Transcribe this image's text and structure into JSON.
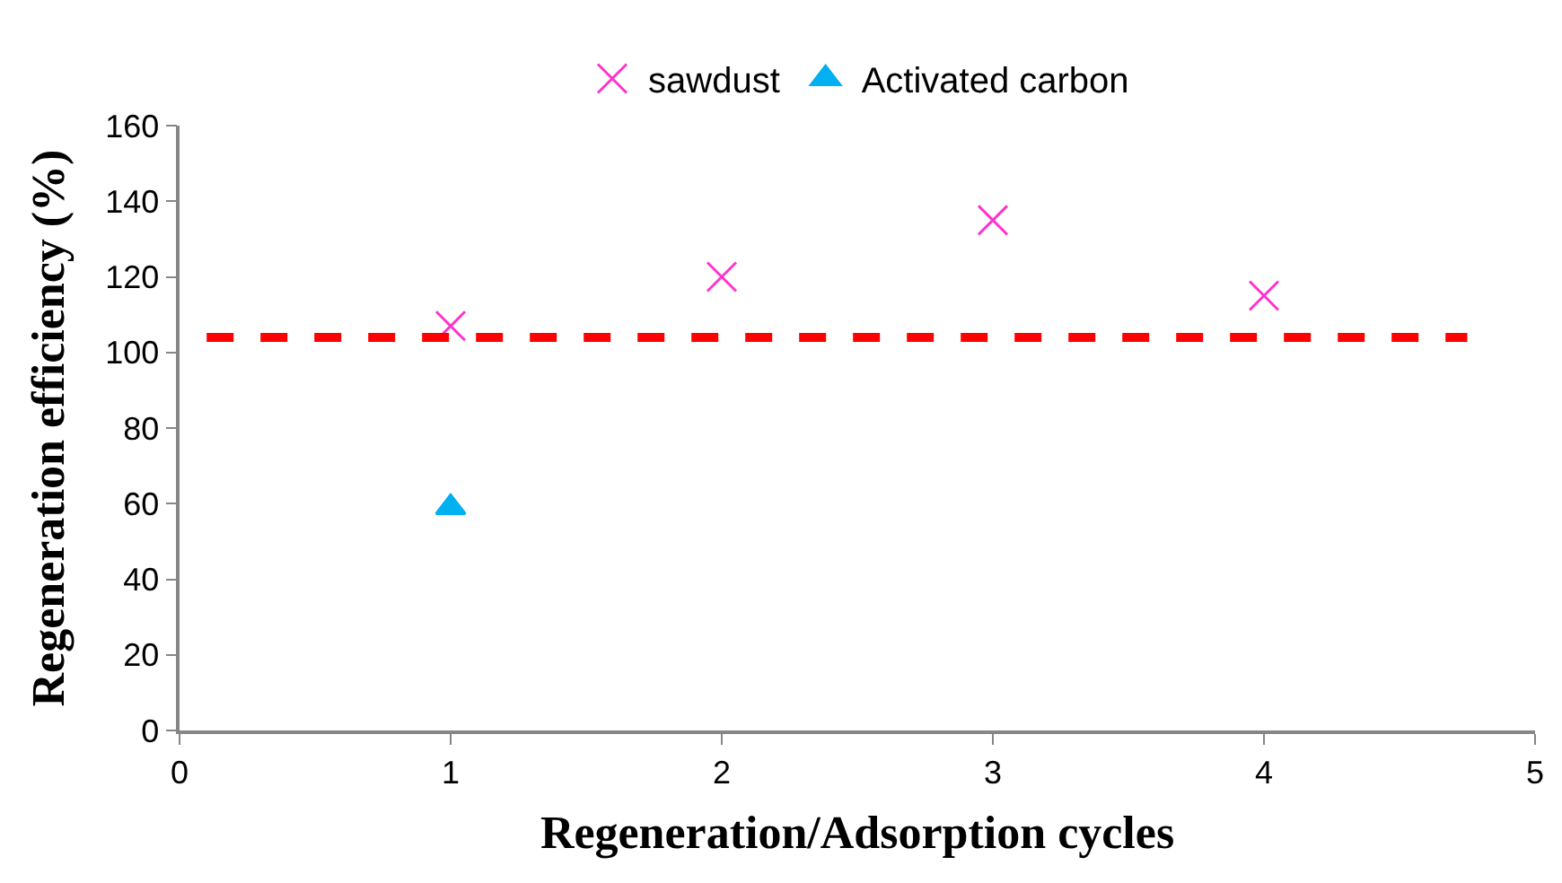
{
  "chart_data": {
    "type": "scatter",
    "xlabel": "Regeneration/Adsorption cycles",
    "ylabel": "Regeneration efficiency (%)",
    "xlim": [
      0,
      5
    ],
    "xticks": [
      0,
      1,
      2,
      3,
      4,
      5
    ],
    "ylim": [
      0,
      160
    ],
    "yticks": [
      0,
      20,
      40,
      60,
      80,
      100,
      120,
      140,
      160
    ],
    "legend": "top",
    "series": [
      {
        "name": "sawdust",
        "color": "#ff33cc",
        "marker": "cross",
        "x": [
          1,
          2,
          3,
          4
        ],
        "values": [
          107,
          120,
          135,
          115
        ]
      },
      {
        "name": "Activated carbon",
        "color": "#00b0f0",
        "marker": "triangle",
        "x": [
          1
        ],
        "values": [
          59
        ]
      },
      {
        "type": "line",
        "color": "#ff0000",
        "line_style": "dashed",
        "marker": "none",
        "x": [
          0.1,
          4.75
        ],
        "values": [
          104,
          104
        ]
      }
    ]
  }
}
